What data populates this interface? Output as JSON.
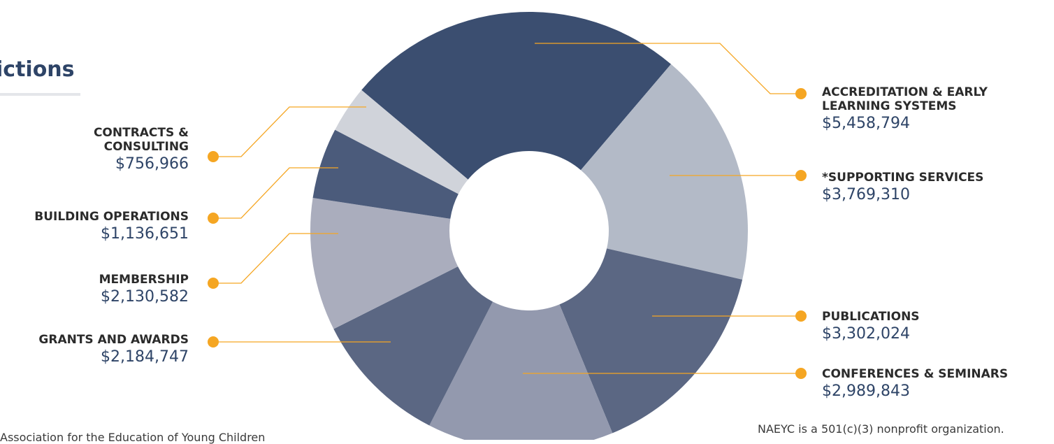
{
  "header": {
    "title_fragment": "ictions"
  },
  "colors": {
    "leader": "#f5a623",
    "accent": "#2e4467"
  },
  "chart_data": {
    "type": "pie",
    "donut": true,
    "slices": [
      {
        "label": "ACCREDITATION & EARLY LEARNING SYSTEMS",
        "amount": "$5,458,794",
        "value": 5458794,
        "color": "#3b4e70"
      },
      {
        "label": "*SUPPORTING SERVICES",
        "amount": "$3,769,310",
        "value": 3769310,
        "color": "#b3bac7"
      },
      {
        "label": "PUBLICATIONS",
        "amount": "$3,302,024",
        "value": 3302024,
        "color": "#5b6783"
      },
      {
        "label": "CONFERENCES & SEMINARS",
        "amount": "$2,989,843",
        "value": 2989843,
        "color": "#9399ae"
      },
      {
        "label": "GRANTS AND AWARDS",
        "amount": "$2,184,747",
        "value": 2184747,
        "color": "#5b6783"
      },
      {
        "label": "MEMBERSHIP",
        "amount": "$2,130,582",
        "value": 2130582,
        "color": "#aaadbd"
      },
      {
        "label": "BUILDING OPERATIONS",
        "amount": "$1,136,651",
        "value": 1136651,
        "color": "#4b5b7b"
      },
      {
        "label": "CONTRACTS & CONSULTING",
        "amount": "$756,966",
        "value": 756966,
        "color": "#d0d3da"
      }
    ]
  },
  "footer": {
    "left_text": "Association for the Education of Young Children",
    "right_text": "NAEYC is a 501(c)(3) nonprofit organization."
  }
}
